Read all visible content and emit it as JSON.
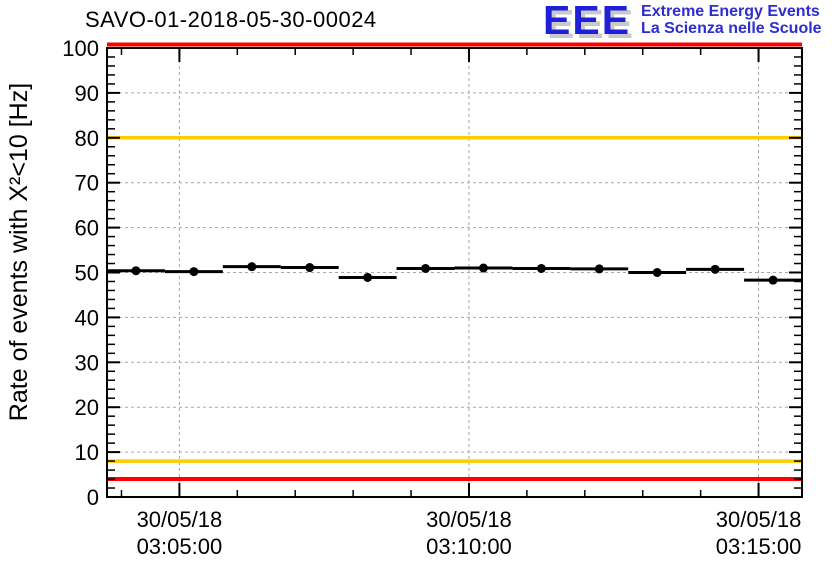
{
  "header": {
    "title": "SAVO-01-2018-05-30-00024",
    "logo": {
      "acronym": "EEE",
      "line1": "Extreme Energy Events",
      "line2": "La Scienza nelle Scuole"
    }
  },
  "chart_data": {
    "type": "scatter",
    "title": "SAVO-01-2018-05-30-00024",
    "ylabel": "Rate of events with X²<10 [Hz]",
    "xlabel": "",
    "ylim": [
      0,
      100
    ],
    "y_major_ticks": [
      0,
      10,
      20,
      30,
      40,
      50,
      60,
      70,
      80,
      90,
      100
    ],
    "y_minor_tick_step": 2,
    "grid": true,
    "x_start": "03:03:45",
    "x_end": "03:15:45",
    "x_minor_tick_every_s": 60,
    "x_major_ticks": [
      {
        "date": "30/05/18",
        "time": "03:05:00"
      },
      {
        "date": "30/05/18",
        "time": "03:10:00"
      },
      {
        "date": "30/05/18",
        "time": "03:15:00"
      }
    ],
    "threshold_lines": [
      {
        "y": 100,
        "color": "#ff0000",
        "kind": "alarm-high"
      },
      {
        "y": 80,
        "color": "#ffcc00",
        "kind": "warn-high"
      },
      {
        "y": 8,
        "color": "#ffcc00",
        "kind": "warn-low"
      },
      {
        "y": 4,
        "color": "#ff0000",
        "kind": "alarm-low"
      }
    ],
    "bin_width_s": 60,
    "y_error_hz": 0.9,
    "points": [
      {
        "time": "03:04:15",
        "rate_hz": 50.4
      },
      {
        "time": "03:05:15",
        "rate_hz": 50.2
      },
      {
        "time": "03:06:15",
        "rate_hz": 51.3
      },
      {
        "time": "03:07:15",
        "rate_hz": 51.1
      },
      {
        "time": "03:08:15",
        "rate_hz": 48.9
      },
      {
        "time": "03:09:15",
        "rate_hz": 50.9
      },
      {
        "time": "03:10:15",
        "rate_hz": 51.0
      },
      {
        "time": "03:11:15",
        "rate_hz": 50.9
      },
      {
        "time": "03:12:15",
        "rate_hz": 50.8
      },
      {
        "time": "03:13:15",
        "rate_hz": 50.0
      },
      {
        "time": "03:14:15",
        "rate_hz": 50.7
      },
      {
        "time": "03:15:15",
        "rate_hz": 48.3
      }
    ],
    "colors": {
      "marker": "#000000",
      "frame": "#000000",
      "grid": "#a6a6a6",
      "alarm": "#ff0000",
      "warning": "#ffcc00",
      "logo_blue": "#2020d8",
      "logo_shadow": "#c9c9c9"
    }
  }
}
